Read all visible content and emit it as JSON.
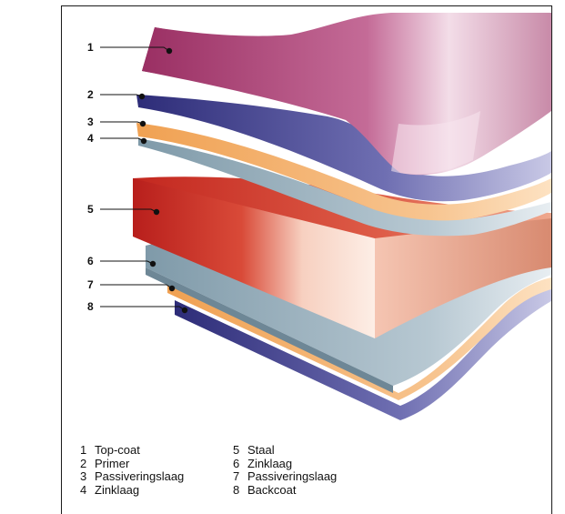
{
  "callouts": [
    {
      "number": "1",
      "color": "#a8436f"
    },
    {
      "number": "2",
      "color": "#3f3f8f"
    },
    {
      "number": "3",
      "color": "#f2a860"
    },
    {
      "number": "4",
      "color": "#8ea6b4"
    },
    {
      "number": "5",
      "color": "#c8322c"
    },
    {
      "number": "6",
      "color": "#8ea6b4"
    },
    {
      "number": "7",
      "color": "#f2a860"
    },
    {
      "number": "8",
      "color": "#3f3f8f"
    }
  ],
  "legend": {
    "left": [
      {
        "number": "1",
        "label": "Top-coat"
      },
      {
        "number": "2",
        "label": "Primer"
      },
      {
        "number": "3",
        "label": "Passiveringslaag"
      },
      {
        "number": "4",
        "label": "Zinklaag"
      }
    ],
    "right": [
      {
        "number": "5",
        "label": "Staal"
      },
      {
        "number": "6",
        "label": "Zinklaag"
      },
      {
        "number": "7",
        "label": "Passiveringslaag"
      },
      {
        "number": "8",
        "label": "Backcoat"
      }
    ]
  }
}
